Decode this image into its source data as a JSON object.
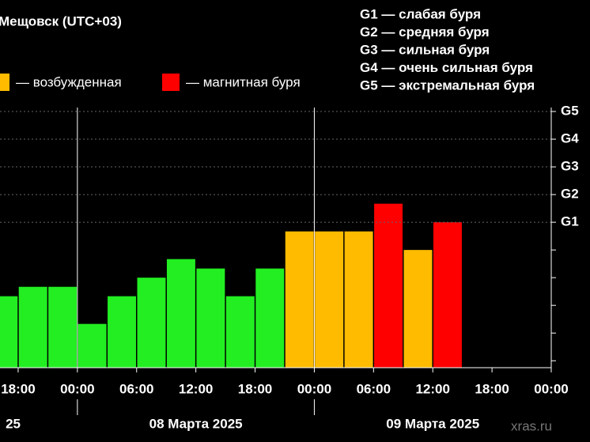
{
  "chart_data": {
    "type": "bar",
    "title": "Мещовск (UTC+03)",
    "scale_legend": [
      "G1 — слабая буря",
      "G2 — средняя буря",
      "G3 — сильная буря",
      "G4 — очень сильная буря",
      "G5 — экстремальная буря"
    ],
    "legend": [
      {
        "name": "— возбужденная",
        "color": "#ffbb00"
      },
      {
        "name": "— магнитная буря",
        "color": "#ff0000"
      }
    ],
    "x": [
      -7.5,
      -4.5,
      -1.5,
      1.5,
      4.5,
      7.5,
      10.5,
      13.5,
      16.5,
      19.5,
      22.5,
      25.5,
      28.5,
      31.5,
      34.5,
      37.5
    ],
    "values": [
      2.33,
      2.67,
      2.67,
      1.33,
      2.33,
      3,
      3.67,
      3.33,
      2.33,
      3.33,
      4.67,
      4.67,
      4.67,
      5.67,
      4,
      5
    ],
    "colors": [
      "#22ee22",
      "#22ee22",
      "#22ee22",
      "#22ee22",
      "#22ee22",
      "#22ee22",
      "#22ee22",
      "#22ee22",
      "#22ee22",
      "#22ee22",
      "#ffbb00",
      "#ffbb00",
      "#ffbb00",
      "#ff0000",
      "#ffbb00",
      "#ff0000"
    ],
    "bar_width": 3,
    "xlim": [
      -7.84,
      48
    ],
    "xticks": [
      {
        "value": -6,
        "label": "18:00"
      },
      {
        "value": 0,
        "label": "00:00"
      },
      {
        "value": 6,
        "label": "06:00"
      },
      {
        "value": 12,
        "label": "12:00"
      },
      {
        "value": 18,
        "label": "18:00"
      },
      {
        "value": 24,
        "label": "00:00"
      },
      {
        "value": 30,
        "label": "06:00"
      },
      {
        "value": 36,
        "label": "12:00"
      },
      {
        "value": 42,
        "label": "18:00"
      },
      {
        "value": 48,
        "label": "00:00"
      }
    ],
    "dates": [
      {
        "value": -12,
        "label": "25"
      },
      {
        "value": 12,
        "label": "08 Марта 2025"
      },
      {
        "value": 36,
        "label": "09 Марта 2025"
      }
    ],
    "day_lines": [
      0,
      24
    ],
    "ylim": [
      -0.25,
      9
    ],
    "yticks": [
      {
        "value": 9,
        "label": "G5"
      },
      {
        "value": 8,
        "label": "G4"
      },
      {
        "value": 7,
        "label": "G3"
      },
      {
        "value": 6,
        "label": "G2"
      },
      {
        "value": 5,
        "label": "G1"
      }
    ],
    "yminor": [
      4,
      3,
      2,
      1,
      0
    ],
    "watermark": "xras.ru"
  }
}
